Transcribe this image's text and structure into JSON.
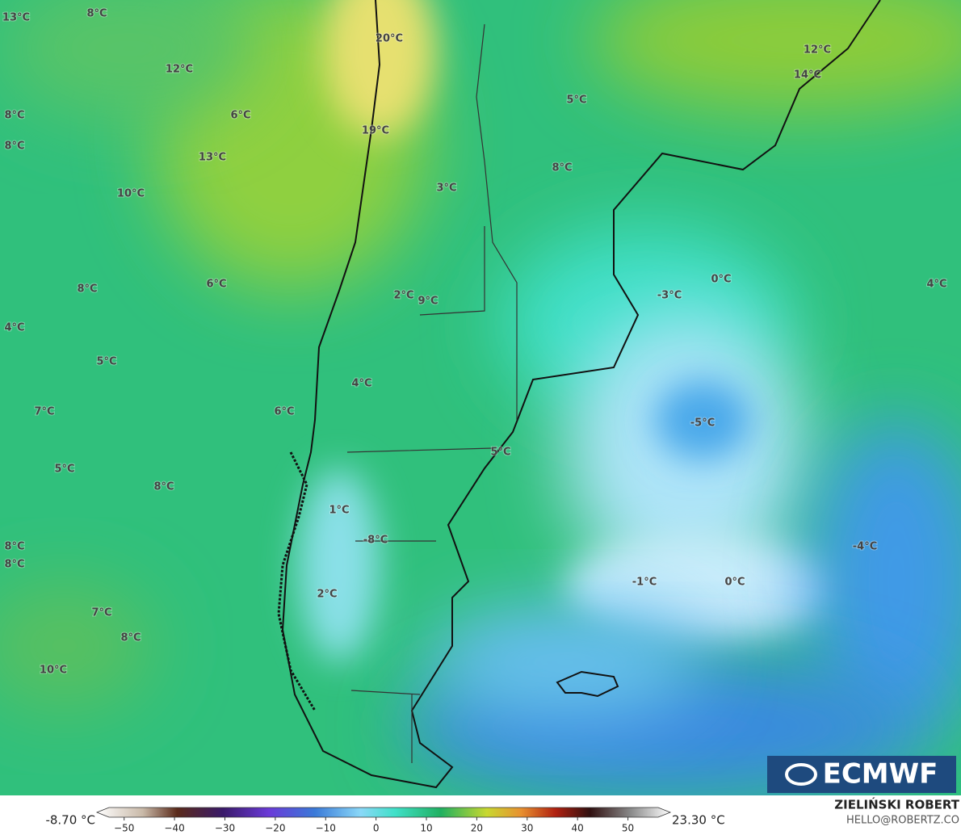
{
  "map": {
    "labels": [
      "13°C",
      "8°C",
      "20°C",
      "12°C",
      "14°C",
      "12°C",
      "5°C",
      "8°C",
      "6°C",
      "19°C",
      "8°C",
      "13°C",
      "8°C",
      "3°C",
      "10°C",
      "0°C",
      "4°C",
      "6°C",
      "8°C",
      "-3°C",
      "2°C",
      "9°C",
      "4°C",
      "5°C",
      "4°C",
      "7°C",
      "6°C",
      "-5°C",
      "5°C",
      "5°C",
      "8°C",
      "1°C",
      "-8°C",
      "-4°C",
      "8°C",
      "8°C",
      "-1°C",
      "0°C",
      "2°C",
      "7°C",
      "8°C",
      "10°C"
    ],
    "logo": "ECMWF",
    "author": "ZIELIŃSKI ROBERT",
    "contact": "HELLO@ROBERTZ.CO"
  },
  "colorbar": {
    "min_label": "-8.70 °C",
    "max_label": "23.30 °C",
    "lim": [
      -53,
      56
    ],
    "ticks": [
      {
        "value": -50,
        "label": "−50"
      },
      {
        "value": -40,
        "label": "−40"
      },
      {
        "value": -30,
        "label": "−30"
      },
      {
        "value": -20,
        "label": "−20"
      },
      {
        "value": -10,
        "label": "−10"
      },
      0,
      10,
      20,
      30,
      40,
      50
    ]
  }
}
